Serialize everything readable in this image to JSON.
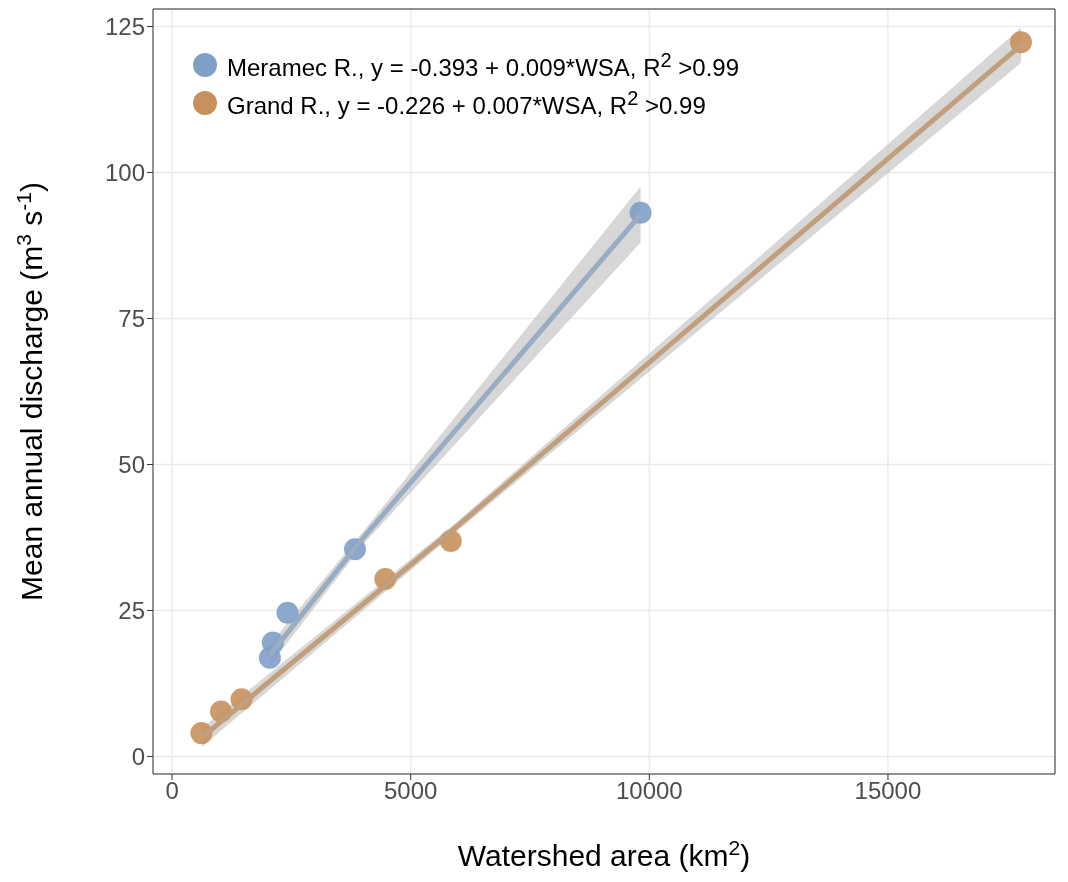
{
  "chart_data": {
    "type": "scatter",
    "xlabel": "Watershed area (km$^{2}$)",
    "ylabel": "Mean annual discharge (m$^{3}$ s$^{-1}$)",
    "xlim": [
      -400,
      18500
    ],
    "xticks": [
      0,
      5000,
      10000,
      15000
    ],
    "ylim": [
      -3,
      128
    ],
    "yticks": [
      0,
      25,
      50,
      75,
      100,
      125
    ],
    "grid": true,
    "legend": "top left",
    "series": [
      {
        "name": "Meramec R., y = -0.393 + 0.009*WSA, R$^{2}$ >0.99",
        "color": "#7f9fc6",
        "x": [
          2049,
          2110,
          2418,
          3832,
          9816
        ],
        "values": [
          16.9,
          19.5,
          24.6,
          35.5,
          93.1
        ]
      },
      {
        "name": "Grand R., y = -0.226 + 0.007*WSA, R$^{2}$ >0.99",
        "color": "#c8915c",
        "x": [
          615,
          1025,
          1455,
          4467,
          5840,
          17787
        ],
        "values": [
          4.0,
          7.7,
          9.8,
          30.4,
          36.9,
          122.3
        ]
      },
      {
        "type": "line",
        "color": "#98acc2",
        "x": [
          2049,
          4000,
          9816
        ],
        "values": [
          17.4,
          37.4,
          92.8
        ],
        "lower": [
          15.6,
          36.3,
          88.0
        ],
        "upper": [
          19.2,
          38.5,
          97.6
        ]
      },
      {
        "type": "line",
        "color": "#c29f7c",
        "x": [
          615,
          6000,
          17787
        ],
        "values": [
          3.2,
          39.6,
          121.8
        ],
        "lower": [
          1.6,
          38.8,
          118.8
        ],
        "upper": [
          4.8,
          40.4,
          124.8
        ]
      }
    ]
  }
}
